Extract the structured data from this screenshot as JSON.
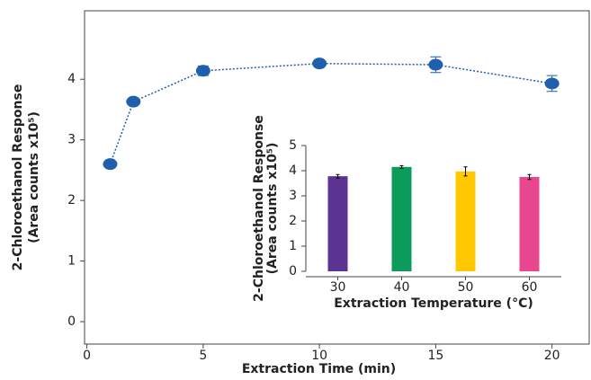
{
  "chart_data": [
    {
      "type": "line",
      "xlabel": "Extraction Time (min)",
      "ylabel": [
        "2-Chloroethanol Response",
        "(Area counts x10⁵)"
      ],
      "x": [
        1,
        2,
        5,
        10,
        15,
        20
      ],
      "values": [
        2.6,
        3.63,
        4.14,
        4.26,
        4.24,
        3.93
      ],
      "error": [
        0.03,
        0.03,
        0.08,
        0.03,
        0.13,
        0.13
      ],
      "color": "#1f5fad",
      "xlim": [
        -0.1,
        21.6
      ],
      "ylim": [
        -0.37,
        5.13
      ],
      "xticks": [
        0,
        5,
        10,
        15,
        20
      ],
      "yticks": [
        0,
        1,
        2,
        3,
        4
      ]
    },
    {
      "type": "bar",
      "xlabel": "Extraction Temperature (°C)",
      "ylabel": [
        "2-Chloroethanol Response",
        "(Area counts x10⁵)"
      ],
      "categories": [
        "30",
        "40",
        "50",
        "60"
      ],
      "values": [
        3.78,
        4.15,
        3.97,
        3.75
      ],
      "error": [
        0.07,
        0.05,
        0.18,
        0.1
      ],
      "colors": [
        "#5c3293",
        "#0d9b5b",
        "#ffc800",
        "#e8468e"
      ],
      "ylim": [
        0,
        5
      ],
      "yticks": [
        0,
        1,
        2,
        3,
        4,
        5
      ]
    }
  ]
}
